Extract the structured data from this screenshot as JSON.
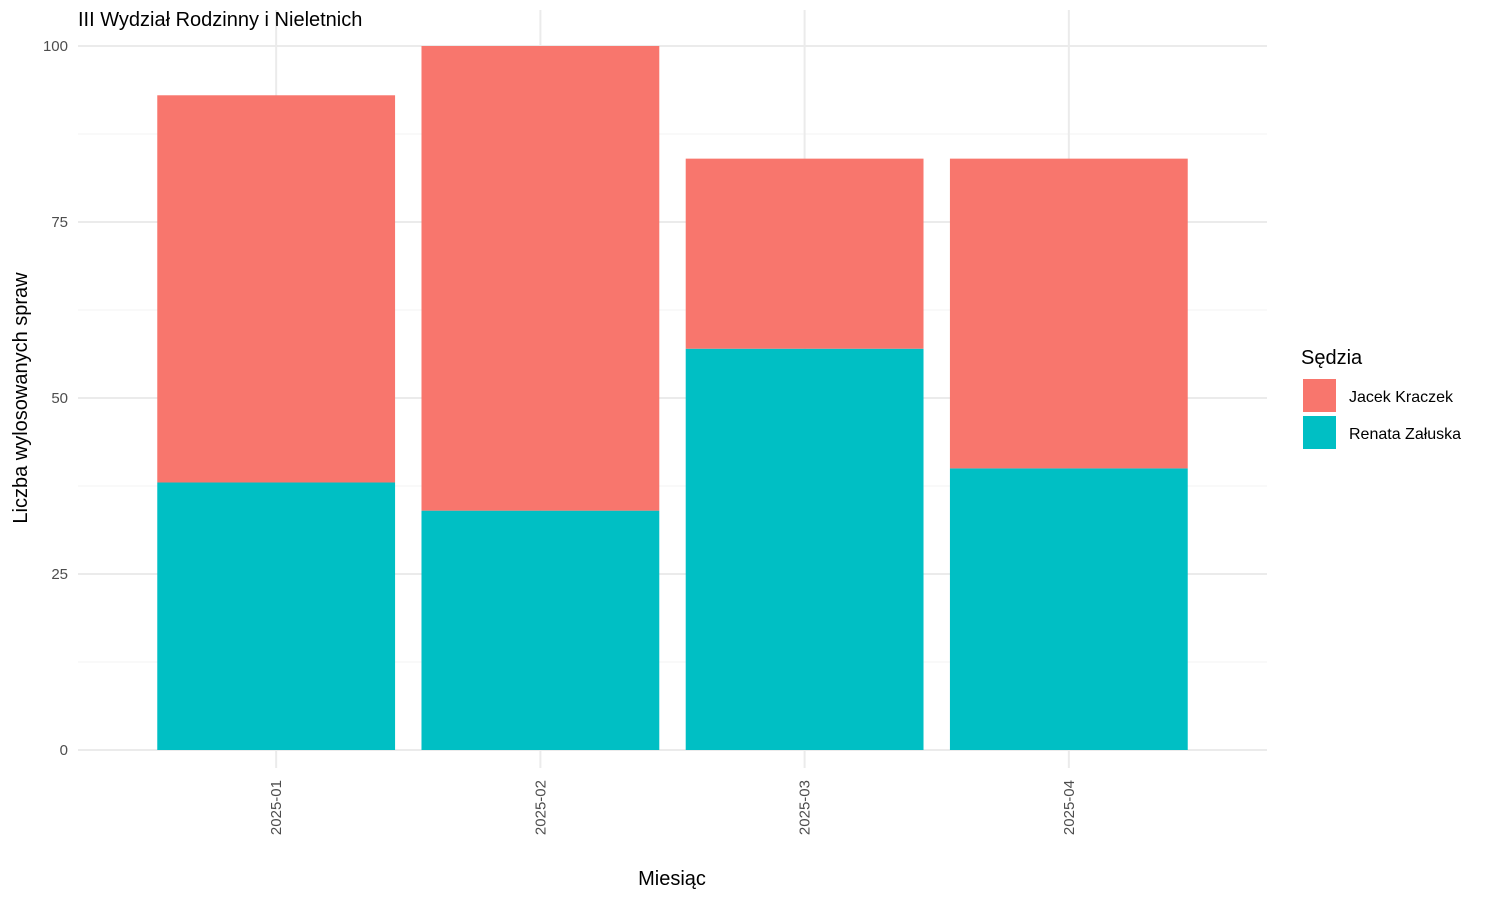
{
  "chart_data": {
    "type": "bar",
    "stacked": true,
    "title": "III Wydział Rodzinny i Nieletnich",
    "xlabel": "Miesiąc",
    "ylabel": "Liczba wylosowanych spraw",
    "categories": [
      "2025-01",
      "2025-02",
      "2025-03",
      "2025-04"
    ],
    "series": [
      {
        "name": "Renata Załuska",
        "values": [
          38,
          34,
          57,
          40
        ],
        "color": "#00BFC4"
      },
      {
        "name": "Jacek Kraczek",
        "values": [
          55,
          66,
          27,
          44
        ],
        "color": "#F8766D"
      }
    ],
    "ylim": [
      0,
      100
    ],
    "yticks": [
      0,
      25,
      50,
      75,
      100
    ],
    "grid": true,
    "legend": {
      "title": "Sędzia",
      "position": "right",
      "order": [
        "Jacek Kraczek",
        "Renata Załuska"
      ]
    }
  }
}
